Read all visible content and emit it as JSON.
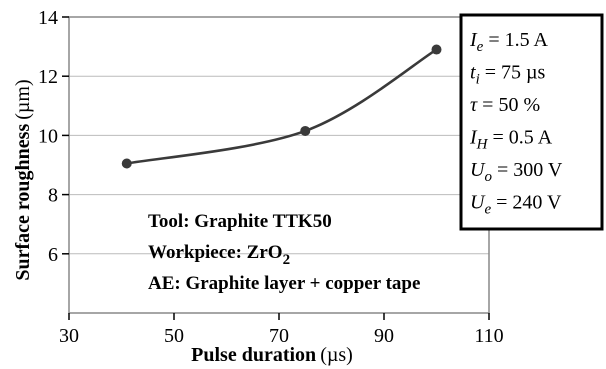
{
  "chart_data": {
    "type": "line",
    "title": "",
    "xlabel": "Pulse duration",
    "xlabel_unit": "(µs)",
    "ylabel": "Surface roughness",
    "ylabel_unit": "(µm)",
    "xlim": [
      30,
      110
    ],
    "ylim": [
      4,
      14
    ],
    "xticks": [
      30,
      50,
      70,
      90,
      110
    ],
    "yticks": [
      6,
      8,
      10,
      12,
      14
    ],
    "x": [
      41,
      75,
      100
    ],
    "y": [
      9.05,
      10.15,
      12.9
    ],
    "series_color": "#3a3a3a",
    "grid": "horizontal",
    "annotations": {
      "tool": "Tool: Graphite TTK50",
      "workpiece_prefix": "Workpiece: ZrO",
      "workpiece_sub": "2",
      "ae": "AE: Graphite layer + copper tape"
    },
    "parameters": [
      {
        "sym": "I",
        "sub": "e",
        "rest": " = 1.5 A"
      },
      {
        "sym": "t",
        "sub": "i",
        "rest": " = 75 µs"
      },
      {
        "sym": "τ",
        "sub": "",
        "rest": " = 50 %"
      },
      {
        "sym": "I",
        "sub": "H",
        "rest": " = 0.5 A"
      },
      {
        "sym": "U",
        "sub": "o",
        "rest": " = 300 V"
      },
      {
        "sym": "U",
        "sub": "e",
        "rest": " = 240 V"
      }
    ]
  }
}
